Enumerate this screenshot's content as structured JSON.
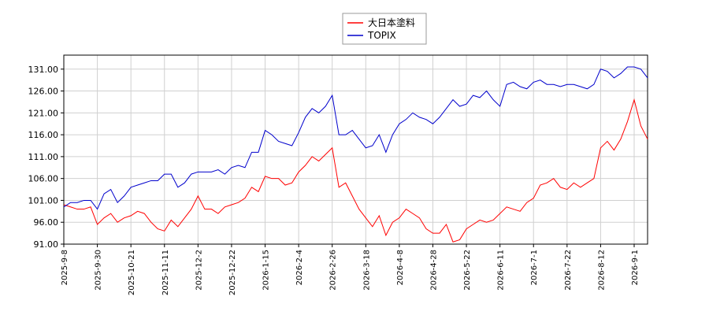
{
  "chart_data": {
    "type": "line",
    "categories": [
      "2025-9-8",
      null,
      null,
      null,
      null,
      "2025-9-30",
      null,
      null,
      null,
      null,
      "2025-10-21",
      null,
      null,
      null,
      null,
      "2025-11-11",
      null,
      null,
      null,
      null,
      "2025-12-2",
      null,
      null,
      null,
      null,
      "2025-12-22",
      null,
      null,
      null,
      null,
      "2026-1-15",
      null,
      null,
      null,
      null,
      "2026-2-4",
      null,
      null,
      null,
      null,
      "2026-2-26",
      null,
      null,
      null,
      null,
      "2026-3-18",
      null,
      null,
      null,
      null,
      "2026-4-8",
      null,
      null,
      null,
      null,
      "2026-4-28",
      null,
      null,
      null,
      null,
      "2026-5-22",
      null,
      null,
      null,
      null,
      "2026-6-11",
      null,
      null,
      null,
      null,
      "2026-7-1",
      null,
      null,
      null,
      null,
      "2026-7-22",
      null,
      null,
      null,
      null,
      "2026-8-12",
      null,
      null,
      null,
      null,
      "2026-9-1",
      null,
      null
    ],
    "series": [
      {
        "name": "大日本塗料",
        "color": "#ff0000",
        "values": [
          100,
          99.5,
          99,
          99,
          99.5,
          95.5,
          97,
          98,
          96,
          97,
          97.5,
          98.5,
          98,
          96,
          94.5,
          94,
          96.5,
          95,
          97,
          99,
          102,
          99,
          99,
          98,
          99.5,
          100,
          100.5,
          101.5,
          104,
          103,
          106.5,
          106,
          106,
          104.5,
          105,
          107.5,
          109,
          111,
          110,
          111.5,
          113,
          104,
          105,
          102,
          99,
          97,
          95,
          97.5,
          93,
          96,
          97,
          99,
          98,
          97,
          94.5,
          93.5,
          93.5,
          95.5,
          91.5,
          92,
          94.5,
          95.5,
          96.5,
          96,
          96.5,
          98,
          99.5,
          99,
          98.5,
          100.5,
          101.5,
          104.5,
          105,
          106,
          104,
          103.5,
          105,
          104,
          105,
          106,
          113,
          114.5,
          112.5,
          115,
          119,
          124,
          118,
          115
        ]
      },
      {
        "name": "TOPIX",
        "color": "#0000cc",
        "values": [
          99.5,
          100.5,
          100.5,
          101,
          101,
          99,
          102.5,
          103.5,
          100.5,
          102,
          104,
          104.5,
          105,
          105.5,
          105.5,
          107,
          107,
          104,
          105,
          107,
          107.5,
          107.5,
          107.5,
          108,
          107,
          108.5,
          109,
          108.5,
          112,
          112,
          117,
          116,
          114.5,
          114,
          113.5,
          116.5,
          120,
          122,
          121,
          122.5,
          125,
          116,
          116,
          117,
          115,
          113,
          113.5,
          116,
          112,
          116,
          118.5,
          119.5,
          121,
          120,
          119.5,
          118.5,
          120,
          122,
          124,
          122.5,
          123,
          125,
          124.5,
          126,
          124,
          122.5,
          127.5,
          128,
          127,
          126.5,
          128,
          128.5,
          127.5,
          127.5,
          127,
          127.5,
          127.5,
          127,
          126.5,
          127.5,
          131,
          130.5,
          129,
          130,
          131.5,
          131.5,
          131,
          129
        ]
      }
    ],
    "ylim": [
      91,
      134.2
    ],
    "yticks": [
      {
        "value": 91,
        "label": "91.00"
      },
      {
        "value": 96,
        "label": "96.00"
      },
      {
        "value": 101,
        "label": "101.00"
      },
      {
        "value": 106,
        "label": "106.00"
      },
      {
        "value": 111,
        "label": "111.00"
      },
      {
        "value": 116,
        "label": "116.00"
      },
      {
        "value": 121,
        "label": "121.00"
      },
      {
        "value": 126,
        "label": "126.00"
      },
      {
        "value": 131,
        "label": "131.00"
      }
    ],
    "grid": true,
    "legend": "top"
  }
}
